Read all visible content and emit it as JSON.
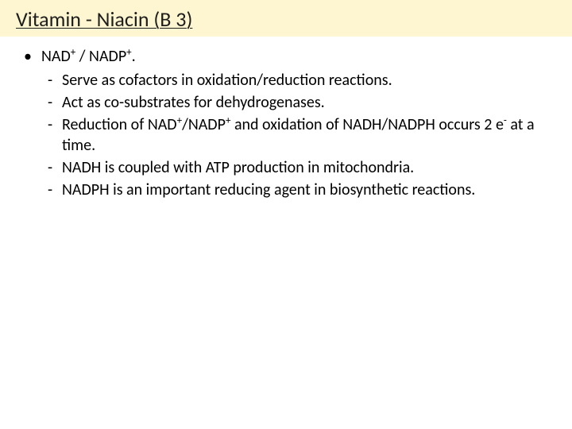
{
  "title": "Vitamin - Niacin (B 3)",
  "colors": {
    "title_bg": "#fef6d0",
    "title_text": "#1d1d1d",
    "body_text": "#000000",
    "page_bg": "#ffffff"
  },
  "typography": {
    "title_fontsize": 26,
    "body_fontsize": 20,
    "font_family": "Calibri"
  },
  "bullet": {
    "marker": "•",
    "prefix": "NAD",
    "sup1": "+",
    "mid": " / NADP",
    "sup2": "+",
    "suffix": "."
  },
  "dash": "-",
  "sub_items": [
    {
      "plain": "Serve as cofactors in oxidation/reduction reactions."
    },
    {
      "plain": "Act as co-substrates for dehydrogenases."
    },
    {
      "p1": "Reduction of NAD",
      "s1": "+",
      "p2": "/NADP",
      "s2": "+",
      "p3": " and oxidation of NADH/NADPH occurs 2 e",
      "s3": "-",
      "p4": " at a time."
    },
    {
      "plain": "NADH is coupled with ATP production in mitochondria."
    },
    {
      "plain": "NADPH is an important reducing agent in biosynthetic reactions."
    }
  ]
}
